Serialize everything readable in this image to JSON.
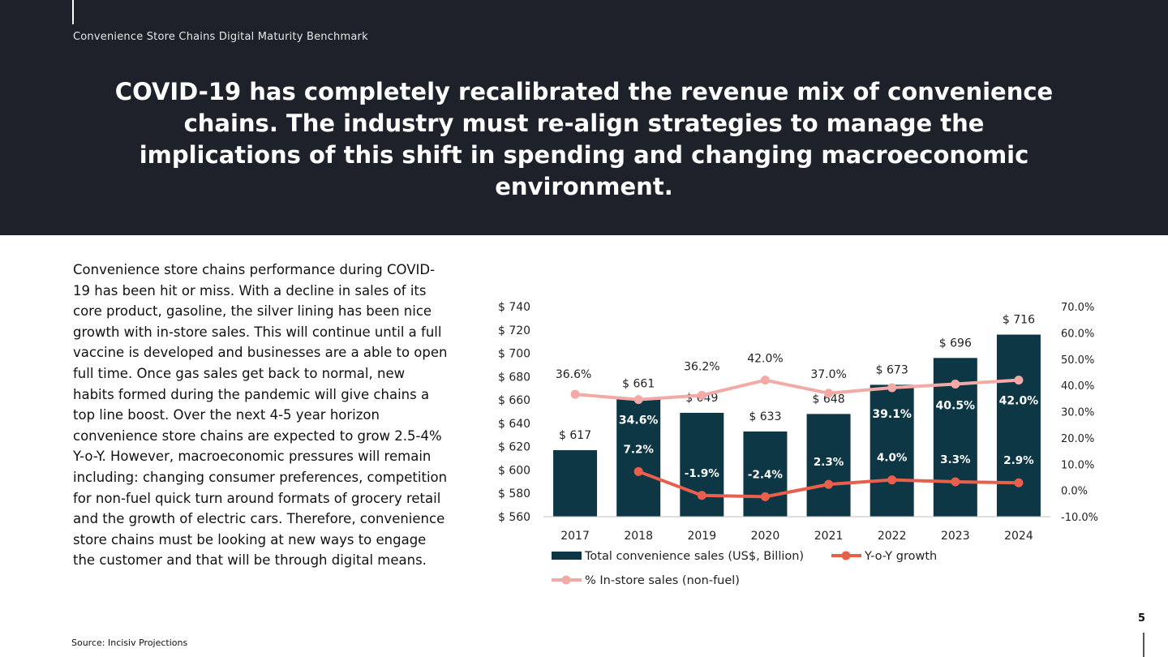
{
  "header": {
    "kicker": "Convenience Store Chains Digital Maturity Benchmark",
    "headline": "COVID-19 has completely recalibrated the revenue mix of convenience chains. The industry must re-align strategies to manage the implications of this shift in spending and changing macroeconomic environment."
  },
  "body": {
    "paragraph": "Convenience store chains performance during COVID-19 has been hit or miss. With a decline in sales of its core product, gasoline, the silver lining has been nice growth with in-store sales. This will continue until a full vaccine is developed and businesses are a able to open full time. Once gas sales get back to normal, new habits formed during the pandemic will give chains a top line boost. Over the next 4-5 year horizon convenience store chains are expected to grow 2.5-4% Y-o-Y. However, macroeconomic pressures will remain including: changing consumer preferences, competition for non-fuel quick turn around formats of grocery retail and the growth of electric cars. Therefore, convenience store chains must be looking at new ways to engage the customer and that will be through digital means."
  },
  "footer": {
    "source": "Source: Incisiv Projections",
    "page_number": "5"
  },
  "colors": {
    "header_bg": "#1d2129",
    "bar": "#0e3746",
    "growth_line": "#e8604c",
    "instore_line": "#f2aaa6"
  },
  "chart_data": {
    "type": "bar",
    "categories": [
      "2017",
      "2018",
      "2019",
      "2020",
      "2021",
      "2022",
      "2023",
      "2024"
    ],
    "left_axis": {
      "min": 560,
      "max": 740,
      "step": 20,
      "tick_labels": [
        "$ 560",
        "$ 580",
        "$ 600",
        "$ 620",
        "$ 640",
        "$ 660",
        "$ 680",
        "$ 700",
        "$ 720",
        "$ 740"
      ]
    },
    "right_axis": {
      "min": -10,
      "max": 70,
      "step": 10,
      "tick_labels": [
        "-10.0%",
        "0.0%",
        "10.0%",
        "20.0%",
        "30.0%",
        "40.0%",
        "50.0%",
        "60.0%",
        "70.0%"
      ]
    },
    "series": [
      {
        "name": "Total convenience sales (US$, Billion)",
        "kind": "bar",
        "axis": "left",
        "values": [
          617,
          661,
          649,
          633,
          648,
          673,
          696,
          716
        ],
        "labels": [
          "$ 617",
          "$ 661",
          "$ 649",
          "$ 633",
          "$ 648",
          "$ 673",
          "$ 696",
          "$ 716"
        ]
      },
      {
        "name": "Y-o-Y growth",
        "kind": "line",
        "axis": "right",
        "values": [
          null,
          7.2,
          -1.9,
          -2.4,
          2.3,
          4.0,
          3.3,
          2.9
        ],
        "labels": [
          "",
          "7.2%",
          "-1.9%",
          "-2.4%",
          "2.3%",
          "4.0%",
          "3.3%",
          "2.9%"
        ]
      },
      {
        "name": "% In-store sales (non-fuel)",
        "kind": "line",
        "axis": "right",
        "values": [
          36.6,
          34.6,
          36.2,
          42.0,
          37.0,
          39.1,
          40.5,
          42.0
        ],
        "labels": [
          "36.6%",
          "34.6%",
          "36.2%",
          "42.0%",
          "37.0%",
          "39.1%",
          "40.5%",
          "42.0%"
        ]
      }
    ],
    "legend_position": "bottom",
    "grid": false
  }
}
